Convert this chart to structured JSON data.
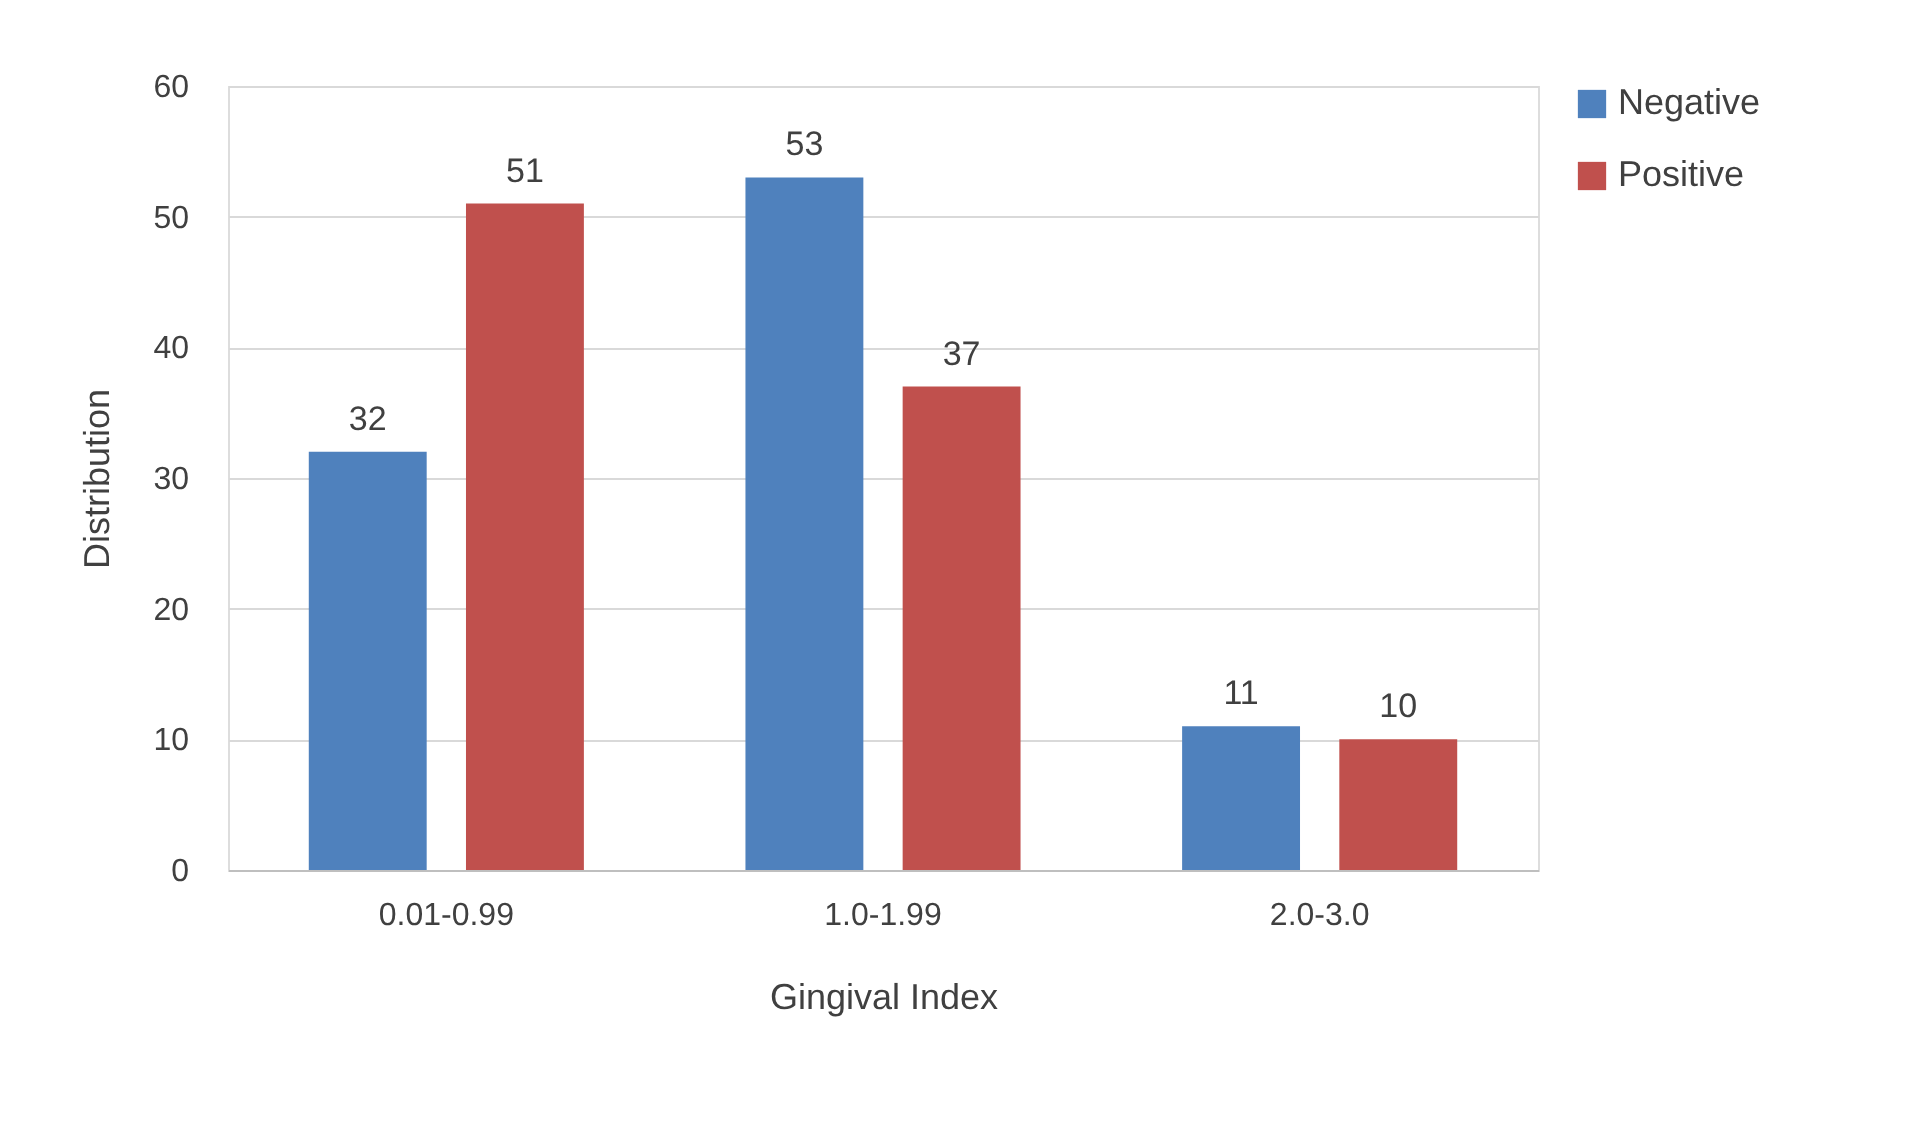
{
  "chart_data": {
    "type": "bar",
    "xlabel": "Gingival Index",
    "ylabel": "Distribution",
    "categories": [
      "0.01-0.99",
      "1.0-1.99",
      "2.0-3.0"
    ],
    "series": [
      {
        "name": "Negative",
        "color": "#4f81bd",
        "values": [
          32,
          53,
          11
        ]
      },
      {
        "name": "Positive",
        "color": "#c0504d",
        "values": [
          51,
          37,
          10
        ]
      }
    ],
    "ylim": [
      0,
      60
    ],
    "yticks": [
      0,
      10,
      20,
      30,
      40,
      50,
      60
    ],
    "grid": "y",
    "legend": "right",
    "data_labels": true
  }
}
